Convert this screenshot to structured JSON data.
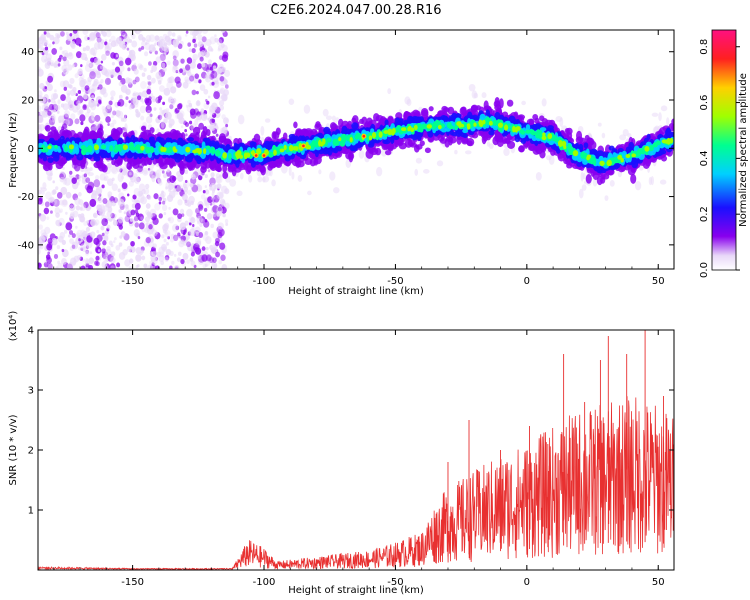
{
  "figure": {
    "title": "C2E6.2024.047.00.28.R16"
  },
  "chart_data": [
    {
      "type": "heatmap",
      "title": "",
      "xlabel": "Height of straight line (km)",
      "ylabel": "Frequency (Hz)",
      "xlim": [
        -186,
        56
      ],
      "ylim": [
        -50,
        49
      ],
      "xticks": [
        -150,
        -100,
        -50,
        0,
        50
      ],
      "yticks": [
        -40,
        -20,
        0,
        20,
        40
      ],
      "xtick_labels": [
        "-150",
        "-100",
        "-50",
        "0",
        "50"
      ],
      "ytick_labels": [
        "-40",
        "-20",
        "0",
        "20",
        "40"
      ],
      "colorbar": {
        "label": "Normalized spectral amplitude",
        "range": [
          0.0,
          0.86
        ],
        "ticks": [
          0.0,
          0.2,
          0.4,
          0.6,
          0.8
        ],
        "tick_labels": [
          "0.0",
          "0.2",
          "0.4",
          "0.6",
          "0.8"
        ],
        "colormap": [
          "#e8d8f8",
          "#8800ee",
          "#1a10ff",
          "#00d0ff",
          "#00ff90",
          "#a0ff00",
          "#ffd000",
          "#ff2020",
          "#ff1080"
        ]
      },
      "ridge": {
        "x": [
          -186,
          -150,
          -120,
          -115,
          -100,
          -80,
          -60,
          -40,
          -20,
          -15,
          0,
          10,
          20,
          30,
          40,
          50,
          56
        ],
        "y": [
          0,
          0,
          -1,
          -3,
          -2,
          2,
          5,
          9,
          10,
          11,
          7,
          4,
          -3,
          -6,
          -3,
          1,
          4
        ]
      },
      "grid": false
    },
    {
      "type": "line",
      "title": "",
      "xlabel": "Height of straight line (km)",
      "ylabel": "SNR (10 * v/v)",
      "y_multiplier": "(x10⁴)",
      "xlim": [
        -186,
        56
      ],
      "ylim": [
        0,
        4
      ],
      "xticks": [
        -150,
        -100,
        -50,
        0,
        50
      ],
      "yticks": [
        1,
        2,
        3,
        4
      ],
      "xtick_labels": [
        "-150",
        "-100",
        "-50",
        "0",
        "50"
      ],
      "ytick_labels": [
        "1",
        "2",
        "3",
        "4"
      ],
      "color": "#e83030",
      "envelope": {
        "x": [
          -186,
          -150,
          -112,
          -106,
          -100,
          -95,
          -80,
          -60,
          -50,
          -40,
          -35,
          -30,
          -20,
          -10,
          0,
          10,
          20,
          30,
          40,
          50,
          56
        ],
        "y": [
          0.04,
          0.02,
          0.02,
          0.28,
          0.2,
          0.08,
          0.12,
          0.18,
          0.25,
          0.35,
          0.6,
          0.75,
          0.9,
          1.05,
          1.15,
          1.3,
          1.45,
          1.5,
          1.6,
          1.5,
          1.4
        ]
      },
      "peaks": {
        "x": [
          -30,
          -22,
          -10,
          1,
          8,
          14,
          22,
          28,
          31,
          38,
          45,
          52
        ],
        "y": [
          1.8,
          2.5,
          2.0,
          2.4,
          2.1,
          3.6,
          2.8,
          3.5,
          3.9,
          3.6,
          4.0,
          2.9
        ]
      },
      "grid": false
    }
  ]
}
